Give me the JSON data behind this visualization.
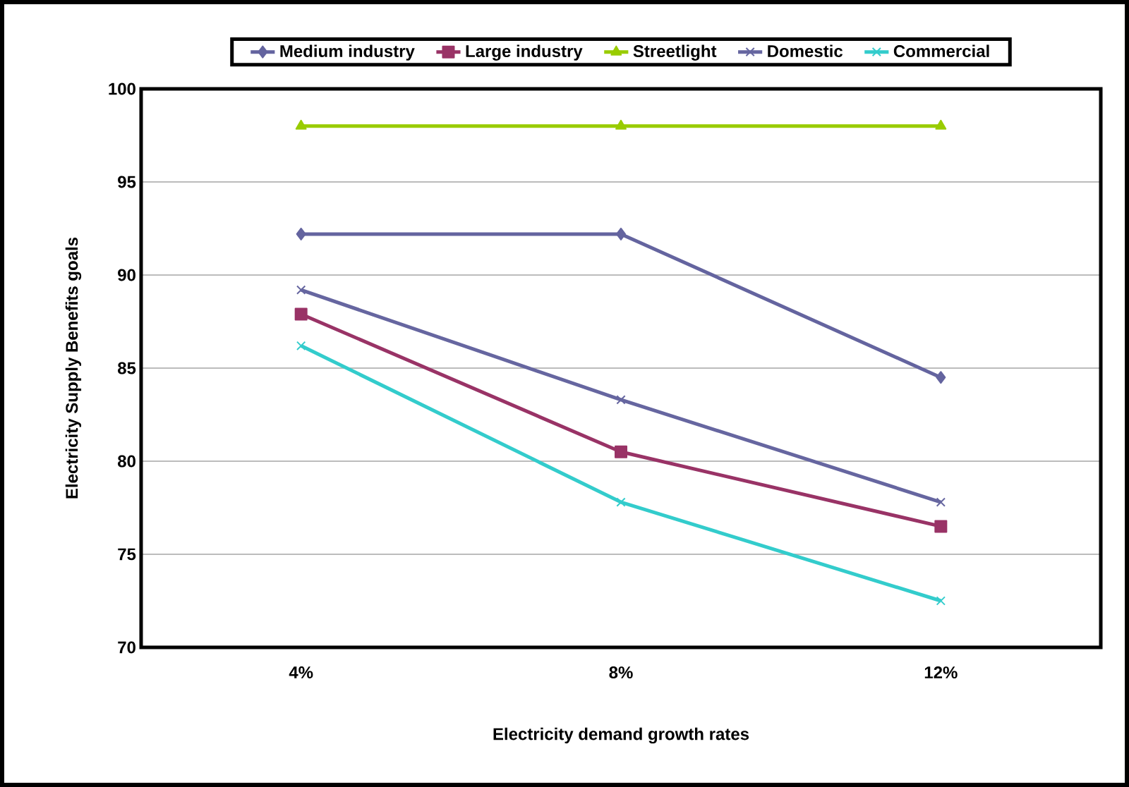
{
  "chart_data": {
    "type": "line",
    "xlabel": "Electricity demand growth rates",
    "ylabel": "Electricity Supply Benefits goals",
    "categories": [
      "4%",
      "8%",
      "12%"
    ],
    "series": [
      {
        "name": "Medium industry",
        "color": "#64649f",
        "marker": "diamond",
        "values": [
          92.2,
          92.2,
          84.5
        ]
      },
      {
        "name": "Large industry",
        "color": "#993366",
        "marker": "square",
        "values": [
          87.9,
          80.5,
          76.5
        ]
      },
      {
        "name": "Streetlight",
        "color": "#99cc00",
        "marker": "triangle",
        "values": [
          98,
          98,
          98
        ]
      },
      {
        "name": "Domestic",
        "color": "#6666a0",
        "marker": "cross",
        "values": [
          89.2,
          83.3,
          77.8
        ]
      },
      {
        "name": "Commercial",
        "color": "#33cccc",
        "marker": "cross",
        "values": [
          86.2,
          77.8,
          72.5
        ]
      }
    ],
    "ylim": [
      70,
      100
    ],
    "yticks": [
      70,
      75,
      80,
      85,
      90,
      95,
      100
    ],
    "grid": "y",
    "legend": "top"
  }
}
